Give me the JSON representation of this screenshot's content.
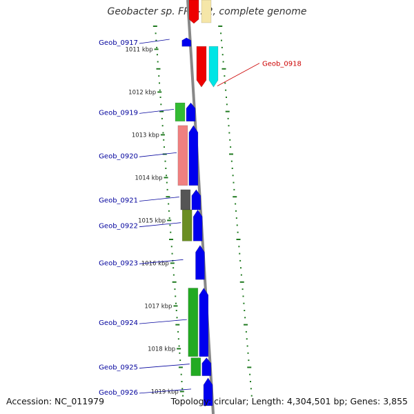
{
  "title": "Geobacter sp. FRC-32, complete genome",
  "footer": {
    "accession": "Accession: NC_011979",
    "summary": "Topology: circular; Length: 4,304,501 bp; Genes: 3,855"
  },
  "colors": {
    "backbone": "#888888",
    "tick": "#1f7a1f",
    "label_blue": "#00009c",
    "label_red": "#cc0000",
    "forward_strand": "#0000ee"
  },
  "chart_data": {
    "type": "genome-map",
    "scale": {
      "unit": "kbp",
      "ticks": [
        1011,
        1012,
        1013,
        1014,
        1015,
        1016,
        1017,
        1018,
        1019
      ],
      "tick_labels": [
        "1011 kbp",
        "1012 kbp",
        "1013 kbp",
        "1014 kbp",
        "1015 kbp",
        "1016 kbp",
        "1017 kbp",
        "1018 kbp",
        "1019 kbp"
      ]
    },
    "genes": [
      {
        "name": "Geob_0917",
        "start": 1010.7,
        "end": 1010.9,
        "feature_color": null,
        "cds_color": "#0000ee",
        "label_color": "#00009c",
        "highlighted": false
      },
      {
        "name": "Geob_0918",
        "start": 1010.9,
        "end": 1011.85,
        "feature_color": "#ee0000",
        "cds_color": "#00e5e5",
        "label_color": "#cc0000",
        "highlighted": true
      },
      {
        "name": "Geob_0919",
        "start": 1012.22,
        "end": 1012.65,
        "feature_color": "#33bb33",
        "cds_color": "#0000ee",
        "label_color": "#00009c",
        "highlighted": false
      },
      {
        "name": "Geob_0920",
        "start": 1012.75,
        "end": 1014.15,
        "feature_color": "#f08080",
        "cds_color": "#0000ee",
        "label_color": "#00009c",
        "highlighted": false
      },
      {
        "name": "Geob_0921",
        "start": 1014.25,
        "end": 1014.72,
        "feature_color": "#555555",
        "cds_color": "#0000ee",
        "label_color": "#00009c",
        "highlighted": false
      },
      {
        "name": "Geob_0922",
        "start": 1014.72,
        "end": 1015.45,
        "feature_color": "#6b8e23",
        "cds_color": "#0000ee",
        "label_color": "#00009c",
        "highlighted": false
      },
      {
        "name": "Geob_0923",
        "start": 1015.55,
        "end": 1016.35,
        "feature_color": null,
        "cds_color": "#0000ee",
        "label_color": "#00009c",
        "highlighted": false
      },
      {
        "name": "Geob_0924",
        "start": 1016.55,
        "end": 1018.15,
        "feature_color": "#22aa22",
        "cds_color": "#0000ee",
        "label_color": "#00009c",
        "highlighted": false
      },
      {
        "name": "Geob_0925",
        "start": 1018.18,
        "end": 1018.6,
        "feature_color": "#22aa22",
        "cds_color": "#0000ee",
        "label_color": "#00009c",
        "highlighted": false
      },
      {
        "name": "Geob_0926",
        "start": 1018.65,
        "end": 1019.3,
        "feature_color": null,
        "cds_color": "#0000ee",
        "label_color": "#00009c",
        "highlighted": false
      }
    ]
  }
}
